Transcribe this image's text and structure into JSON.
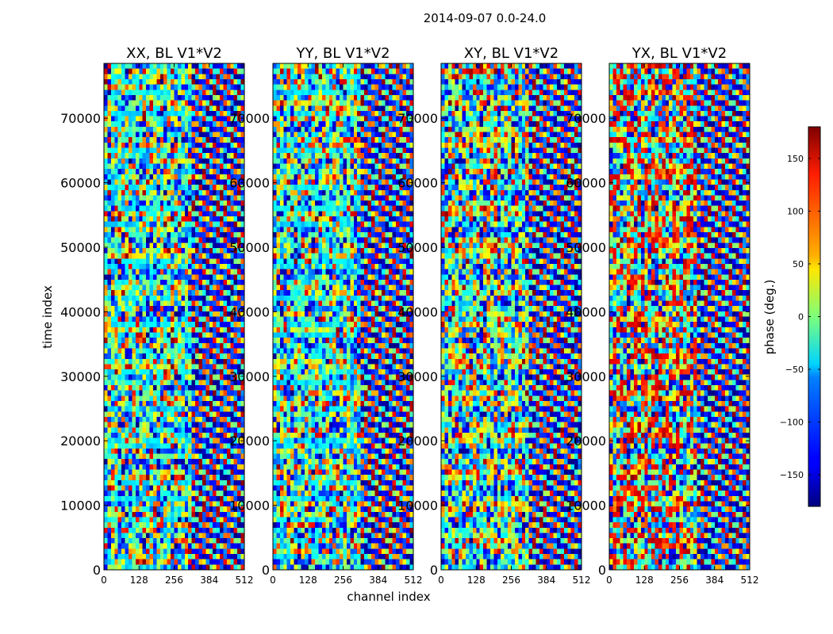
{
  "chart_data": {
    "type": "heatmap",
    "suptitle": "2014-09-07 0.0-24.0",
    "xlabel": "channel index",
    "ylabel": "time index",
    "xlim": [
      0,
      512
    ],
    "ylim": [
      0,
      78500
    ],
    "xticks": [
      0,
      128,
      256,
      384,
      512
    ],
    "yticks": [
      0,
      10000,
      20000,
      30000,
      40000,
      50000,
      60000,
      70000
    ],
    "panels": [
      {
        "title": "XX, BL V1*V2",
        "polarization": "XX"
      },
      {
        "title": "YY, BL V1*V2",
        "polarization": "YY"
      },
      {
        "title": "XY, BL V1*V2",
        "polarization": "XY"
      },
      {
        "title": "YX, BL V1*V2",
        "polarization": "YX"
      }
    ],
    "colorbar": {
      "label": "phase (deg.)",
      "range": [
        -180,
        180
      ],
      "ticks": [
        -150,
        -100,
        -50,
        0,
        50,
        100,
        150
      ],
      "colormap": "jet"
    }
  }
}
